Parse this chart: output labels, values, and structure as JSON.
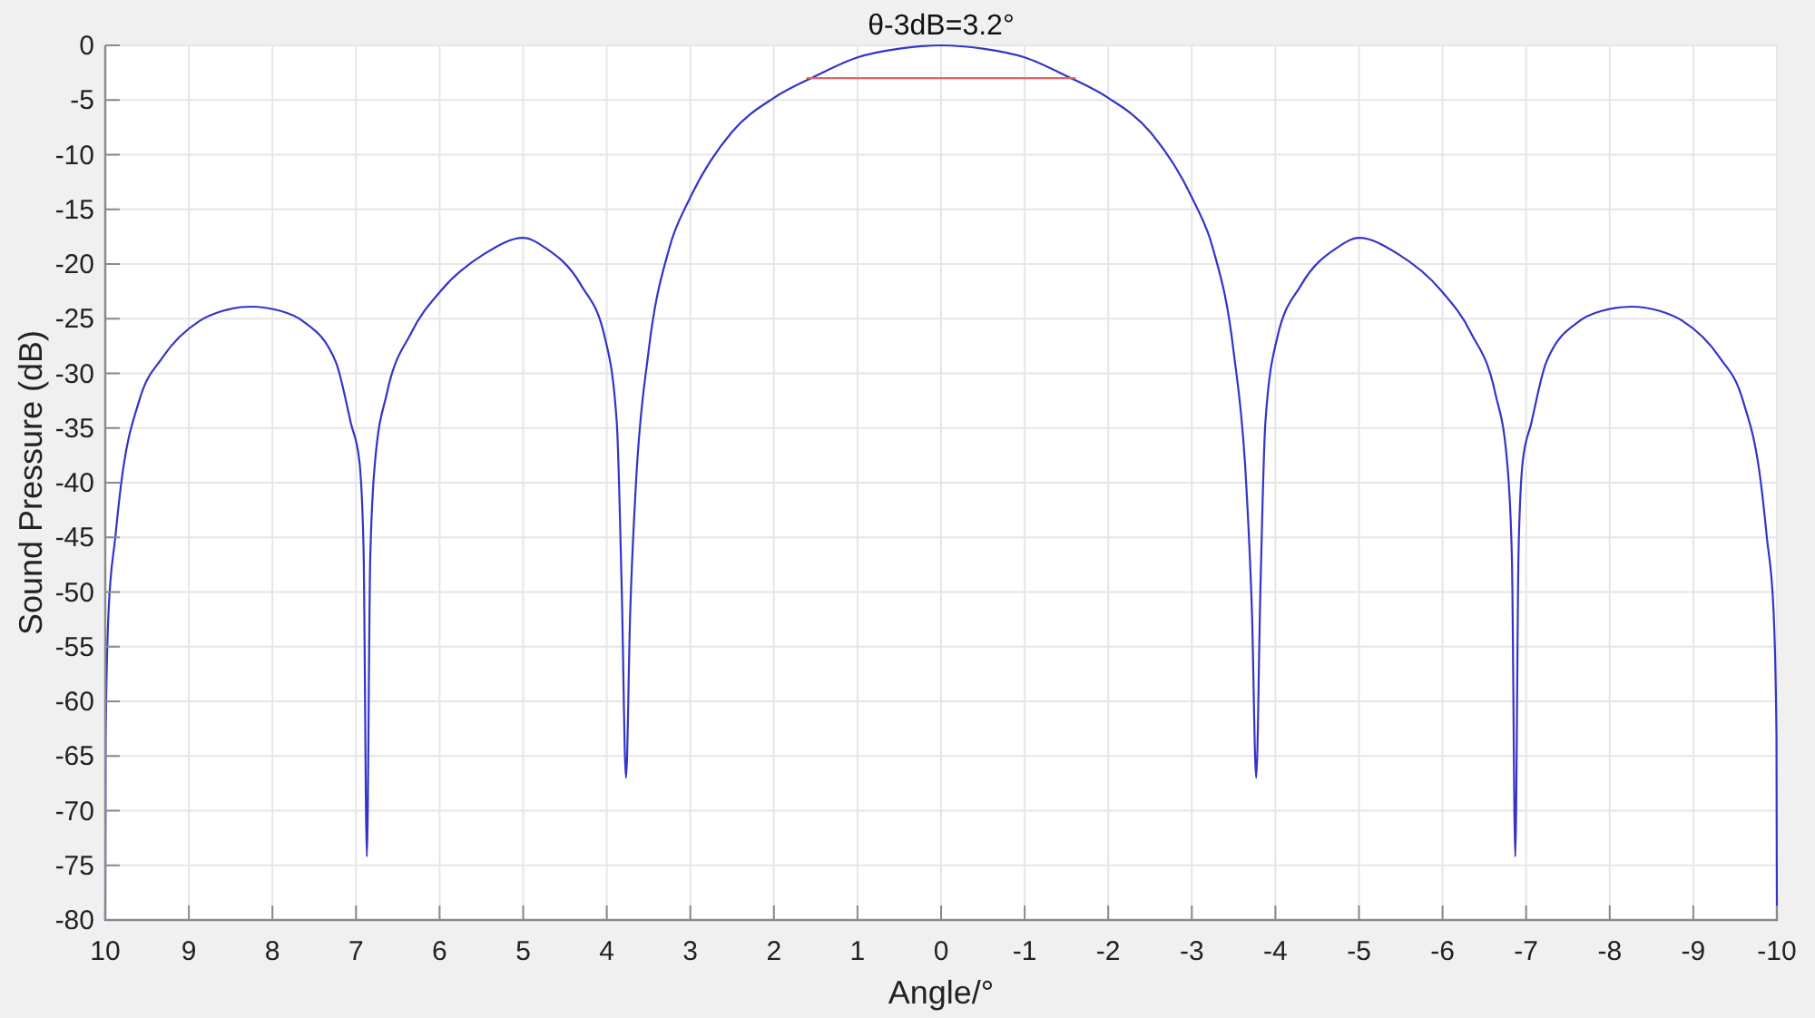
{
  "chart_data": {
    "type": "line",
    "title": "θ-3dB=3.2°",
    "xlabel": "Angle/°",
    "ylabel": "Sound Pressure (dB)",
    "x": [
      -10,
      -9.995,
      -9.96,
      -9.88,
      -9.81,
      -9.59,
      -9.31,
      -8.87,
      -8.6,
      -8.26,
      -7.9,
      -7.64,
      -7.24,
      -7.06,
      -6.96,
      -6.91,
      -6.87,
      -6.83,
      -6.77,
      -6.63,
      -6.34,
      -5.98,
      -5.47,
      -5.0,
      -4.74,
      -4.31,
      -4.02,
      -3.88,
      -3.82,
      -3.77,
      -3.72,
      -3.65,
      -3.5,
      -3.25,
      -3.0,
      -2.5,
      -2.0,
      -1.5,
      -1.0,
      -0.5,
      0,
      0.5,
      1.0,
      1.5,
      2.0,
      2.5,
      3.0,
      3.25,
      3.5,
      3.65,
      3.72,
      3.77,
      3.82,
      3.88,
      4.02,
      4.31,
      4.74,
      5.0,
      5.47,
      5.98,
      6.34,
      6.63,
      6.77,
      6.83,
      6.87,
      6.91,
      6.96,
      7.06,
      7.24,
      7.64,
      7.9,
      8.26,
      8.6,
      8.87,
      9.31,
      9.59,
      9.81,
      9.88,
      9.96,
      9.995,
      10
    ],
    "series": [
      {
        "color": "#3434c8",
        "values": [
          -80,
          -63,
          -51.7,
          -45,
          -40.1,
          -32.4,
          -28.5,
          -25.2,
          -24.3,
          -23.9,
          -24.3,
          -25.2,
          -29,
          -34.6,
          -38,
          -46,
          -74.2,
          -47,
          -37.9,
          -31.8,
          -26.3,
          -22.4,
          -19.1,
          -17.6,
          -18.5,
          -21.9,
          -26.8,
          -34.5,
          -50,
          -67,
          -52,
          -40,
          -28,
          -18.5,
          -13.9,
          -7.9,
          -4.8,
          -2.8,
          -1.1,
          -0.3,
          0,
          -0.3,
          -1.1,
          -2.8,
          -4.8,
          -7.9,
          -13.9,
          -18.5,
          -28,
          -40,
          -52,
          -67,
          -50,
          -34.5,
          -26.8,
          -21.9,
          -18.5,
          -17.6,
          -19.1,
          -22.4,
          -26.3,
          -31.8,
          -37.9,
          -47,
          -74.2,
          -46,
          -38,
          -34.6,
          -29,
          -25.2,
          -24.3,
          -23.9,
          -24.3,
          -25.2,
          -28.5,
          -32.4,
          -40.1,
          -45,
          -51.7,
          -63,
          -80
        ]
      },
      {
        "type": "line",
        "color": "#e06464",
        "x": [
          1.6,
          -1.6
        ],
        "values": [
          -3,
          -3
        ]
      }
    ],
    "xlim": [
      10,
      -10
    ],
    "xticks": [
      10,
      9,
      8,
      7,
      6,
      5,
      4,
      3,
      2,
      1,
      0,
      -1,
      -2,
      -3,
      -4,
      -5,
      -6,
      -7,
      -8,
      -9,
      -10
    ],
    "ylim": [
      -80,
      0
    ],
    "yticks": [
      0,
      -5,
      -10,
      -15,
      -20,
      -25,
      -30,
      -35,
      -40,
      -45,
      -50,
      -55,
      -60,
      -65,
      -70,
      -75,
      -80
    ],
    "grid": true
  }
}
